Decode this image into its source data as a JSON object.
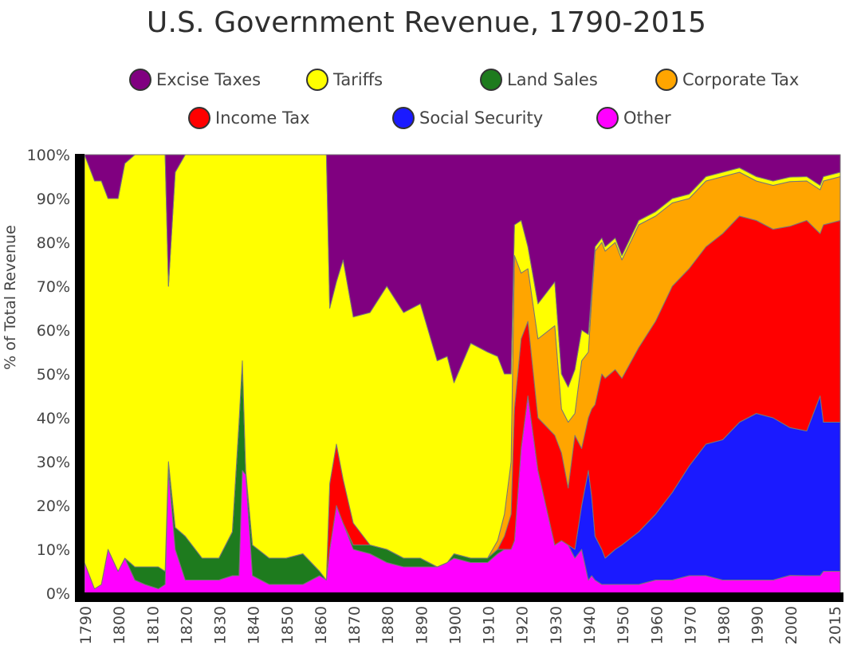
{
  "chart_data": {
    "type": "area",
    "stacked": "percent",
    "title": "U.S. Government Revenue, 1790-2015",
    "ylabel": "% of Total Revenue",
    "xlabel": "",
    "xlim": [
      1790,
      2015
    ],
    "ylim": [
      0,
      100
    ],
    "x_ticks": [
      "1790",
      "1800",
      "1810",
      "1820",
      "1830",
      "1840",
      "1850",
      "1860",
      "1870",
      "1880",
      "1890",
      "1900",
      "1910",
      "1920",
      "1930",
      "1940",
      "1950",
      "1960",
      "1970",
      "1980",
      "1990",
      "2000",
      "2015"
    ],
    "y_ticks": [
      "0%",
      "10%",
      "20%",
      "30%",
      "40%",
      "50%",
      "60%",
      "70%",
      "80%",
      "90%",
      "100%"
    ],
    "x": [
      1790,
      1793,
      1795,
      1797,
      1800,
      1802,
      1805,
      1808,
      1812,
      1814,
      1815,
      1817,
      1820,
      1825,
      1830,
      1834,
      1836,
      1837,
      1838,
      1840,
      1845,
      1850,
      1855,
      1860,
      1862,
      1863,
      1865,
      1867,
      1870,
      1875,
      1880,
      1885,
      1890,
      1895,
      1898,
      1900,
      1905,
      1910,
      1913,
      1915,
      1917,
      1918,
      1920,
      1922,
      1925,
      1930,
      1932,
      1934,
      1936,
      1938,
      1940,
      1941,
      1942,
      1944,
      1945,
      1948,
      1950,
      1955,
      1960,
      1965,
      1970,
      1975,
      1980,
      1985,
      1990,
      1995,
      2000,
      2005,
      2009,
      2010,
      2015
    ],
    "series": [
      {
        "name": "Other",
        "color": "#ff00ff",
        "values": [
          7,
          1,
          2,
          10,
          5,
          8,
          3,
          2,
          1,
          2,
          28,
          10,
          3,
          3,
          3,
          4,
          4,
          28,
          27,
          4,
          2,
          2,
          2,
          4,
          3,
          10,
          20,
          16,
          10,
          9,
          7,
          6,
          6,
          6,
          7,
          8,
          7,
          7,
          9,
          10,
          10,
          12,
          33,
          45,
          28,
          11,
          12,
          11,
          8,
          10,
          3,
          4,
          3,
          2,
          2,
          2,
          2,
          2,
          3,
          3,
          4,
          4,
          3,
          3,
          3,
          3,
          4,
          4,
          4,
          5,
          5
        ]
      },
      {
        "name": "Land Sales",
        "color": "#1e7b1e",
        "values": [
          0,
          0,
          0,
          0,
          0,
          0,
          3,
          4,
          5,
          3,
          2,
          5,
          10,
          5,
          5,
          10,
          35,
          25,
          1,
          7,
          6,
          6,
          7,
          1,
          0,
          0,
          0,
          0,
          1,
          2,
          3,
          2,
          2,
          0,
          0,
          1,
          1,
          1,
          1,
          0,
          0,
          0,
          0,
          0,
          0,
          0,
          0,
          0,
          0,
          0,
          0,
          0,
          0,
          0,
          0,
          0,
          0,
          0,
          0,
          0,
          0,
          0,
          0,
          0,
          0,
          0,
          0,
          0,
          0,
          0,
          0
        ]
      },
      {
        "name": "Social Security",
        "color": "#1a1aff",
        "values": [
          0,
          0,
          0,
          0,
          0,
          0,
          0,
          0,
          0,
          0,
          0,
          0,
          0,
          0,
          0,
          0,
          0,
          0,
          0,
          0,
          0,
          0,
          0,
          0,
          0,
          0,
          0,
          0,
          0,
          0,
          0,
          0,
          0,
          0,
          0,
          0,
          0,
          0,
          0,
          0,
          0,
          0,
          0,
          0,
          0,
          0,
          0,
          0,
          2,
          10,
          25,
          18,
          10,
          8,
          6,
          8,
          9,
          12,
          15,
          20,
          25,
          30,
          32,
          36,
          38,
          37,
          33,
          33,
          41,
          34,
          34
        ]
      },
      {
        "name": "Income Tax",
        "color": "#ff0000",
        "values": [
          0,
          0,
          0,
          0,
          0,
          0,
          0,
          0,
          0,
          0,
          0,
          0,
          0,
          0,
          0,
          0,
          0,
          0,
          0,
          0,
          0,
          0,
          0,
          0,
          0,
          15,
          14,
          10,
          5,
          0,
          0,
          0,
          0,
          0,
          0,
          0,
          0,
          0,
          0,
          3,
          8,
          30,
          25,
          17,
          12,
          25,
          20,
          13,
          26,
          13,
          12,
          20,
          30,
          40,
          41,
          41,
          38,
          42,
          44,
          47,
          45,
          45,
          47,
          47,
          44,
          43,
          45,
          48,
          37,
          45,
          46
        ]
      },
      {
        "name": "Corporate Tax",
        "color": "#ffa500",
        "values": [
          0,
          0,
          0,
          0,
          0,
          0,
          0,
          0,
          0,
          0,
          0,
          0,
          0,
          0,
          0,
          0,
          0,
          0,
          0,
          0,
          0,
          0,
          0,
          0,
          0,
          0,
          0,
          0,
          0,
          0,
          0,
          0,
          0,
          0,
          0,
          0,
          0,
          0,
          2,
          5,
          12,
          35,
          15,
          12,
          18,
          25,
          10,
          15,
          5,
          20,
          15,
          25,
          35,
          30,
          29,
          29,
          27,
          28,
          24,
          19,
          16,
          15,
          13,
          10,
          9,
          10,
          10,
          9,
          10,
          10,
          10
        ]
      },
      {
        "name": "Tariffs",
        "color": "#ffff00",
        "values": [
          93,
          93,
          92,
          80,
          85,
          90,
          94,
          94,
          94,
          95,
          40,
          81,
          87,
          92,
          92,
          86,
          61,
          47,
          72,
          89,
          92,
          92,
          91,
          95,
          97,
          40,
          37,
          50,
          47,
          53,
          60,
          56,
          58,
          47,
          47,
          39,
          49,
          47,
          42,
          32,
          20,
          7,
          12,
          5,
          8,
          10,
          8,
          8,
          10,
          7,
          4,
          2,
          1,
          1,
          1,
          1,
          1,
          1,
          1,
          1,
          1,
          1,
          1,
          1,
          1,
          1,
          1,
          1,
          1,
          1,
          1
        ]
      },
      {
        "name": "Excise Taxes",
        "color": "#800080",
        "values": [
          0,
          6,
          6,
          10,
          10,
          2,
          0,
          0,
          0,
          0,
          30,
          4,
          0,
          0,
          0,
          0,
          0,
          0,
          0,
          0,
          0,
          0,
          0,
          0,
          0,
          35,
          29,
          24,
          37,
          36,
          30,
          36,
          34,
          47,
          46,
          52,
          43,
          45,
          46,
          50,
          50,
          16,
          15,
          21,
          34,
          29,
          50,
          53,
          49,
          40,
          41,
          31,
          21,
          19,
          21,
          19,
          23,
          15,
          13,
          10,
          9,
          5,
          4,
          3,
          5,
          6,
          5,
          5,
          7,
          5,
          4
        ]
      }
    ]
  },
  "legend": [
    {
      "label": "Excise Taxes",
      "color": "#800080"
    },
    {
      "label": "Tariffs",
      "color": "#ffff00"
    },
    {
      "label": "Land Sales",
      "color": "#1e7b1e"
    },
    {
      "label": "Corporate Tax",
      "color": "#ffa500"
    },
    {
      "label": "Income Tax",
      "color": "#ff0000"
    },
    {
      "label": "Social Security",
      "color": "#1a1aff"
    },
    {
      "label": "Other",
      "color": "#ff00ff"
    }
  ]
}
